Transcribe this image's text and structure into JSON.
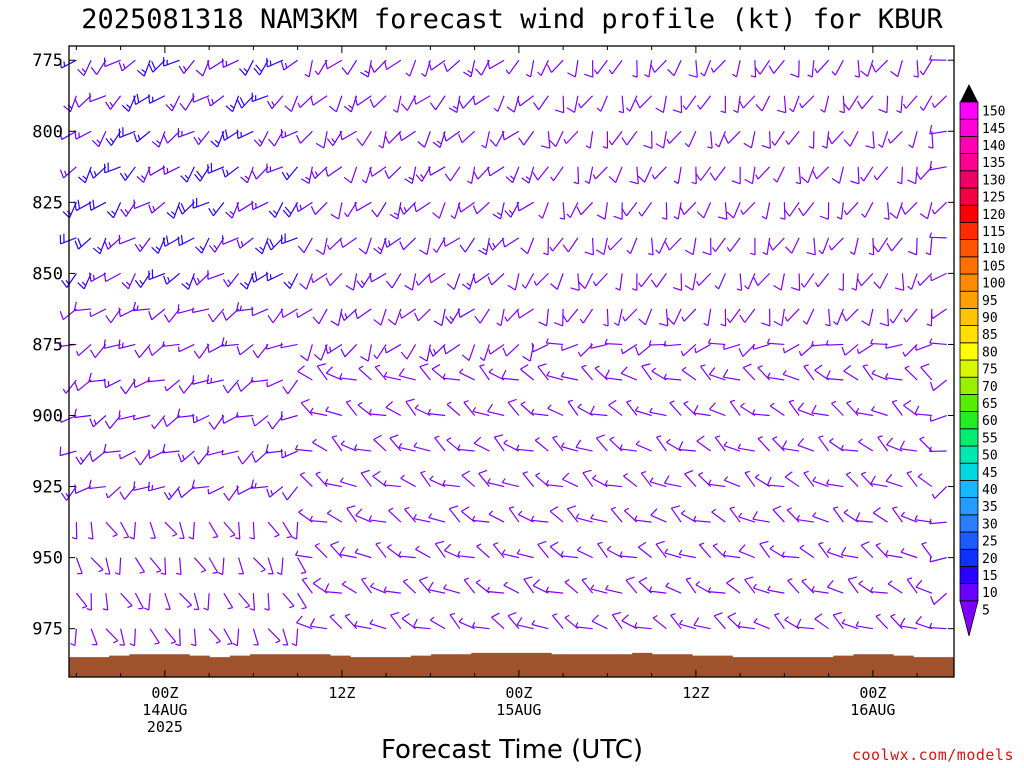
{
  "chart_data": {
    "type": "wind-barb-profile",
    "title": "2025081318 NAM3KM forecast wind profile (kt) for KBUR",
    "xlabel": "Forecast Time (UTC)",
    "ylabel": "",
    "y_ticks": [
      775,
      800,
      825,
      850,
      875,
      900,
      925,
      950,
      975
    ],
    "ylim": [
      770,
      992
    ],
    "xlim_hours": [
      -6.5,
      53.5
    ],
    "x_ticks": [
      {
        "hour": 0,
        "label": "00Z",
        "line2": "14AUG",
        "line3": "2025"
      },
      {
        "hour": 12,
        "label": "12Z",
        "line2": "",
        "line3": ""
      },
      {
        "hour": 24,
        "label": "00Z",
        "line2": "15AUG",
        "line3": ""
      },
      {
        "hour": 36,
        "label": "12Z",
        "line2": "",
        "line3": ""
      },
      {
        "hour": 48,
        "label": "00Z",
        "line2": "16AUG",
        "line3": ""
      }
    ],
    "colorbar": {
      "levels": [
        5,
        10,
        15,
        20,
        25,
        30,
        35,
        40,
        45,
        50,
        55,
        60,
        65,
        70,
        75,
        80,
        85,
        90,
        95,
        100,
        105,
        110,
        115,
        120,
        125,
        130,
        135,
        140,
        145,
        150
      ],
      "colors": [
        "#8000ff",
        "#6a00ff",
        "#2a00ff",
        "#1030ff",
        "#1c5cff",
        "#2c7cff",
        "#239bff",
        "#16b8ff",
        "#00d8e0",
        "#00e8b0",
        "#00ee70",
        "#22ee22",
        "#55ee00",
        "#99f000",
        "#d8f800",
        "#ffff00",
        "#ffe000",
        "#ffc400",
        "#ffa000",
        "#ff8c00",
        "#ff7000",
        "#ff5500",
        "#ff2c00",
        "#ff0000",
        "#f20040",
        "#ee0066",
        "#ff0090",
        "#ff00b0",
        "#ff00d8",
        "#ff00ff"
      ],
      "top_arrow_color": "#000000"
    },
    "terrain_color": "#a0522d",
    "terrain_top_mb": [
      985,
      985,
      984.5,
      984,
      984,
      984,
      984.5,
      985,
      984.5,
      984,
      984,
      984,
      984,
      984.5,
      985,
      985,
      985,
      984.5,
      984,
      984,
      983.5,
      983.5,
      983.5,
      983.5,
      984,
      984,
      984,
      984,
      983.5,
      984,
      984,
      984.5,
      984.5,
      985,
      985,
      985,
      985,
      985,
      984.5,
      984,
      984,
      984.5,
      985,
      985
    ],
    "barbs": {
      "note": "one wind barb per forecast hour per pressure level; values in knots / degrees",
      "hours_start": -6,
      "hours_step": 1,
      "levels_mb": [
        775,
        787.5,
        800,
        812.5,
        825,
        837.5,
        850,
        862.5,
        875,
        887.5,
        900,
        912.5,
        925,
        937.5,
        950,
        962.5,
        975,
        987.5
      ],
      "regimes": [
        {
          "hours": [
            -6,
            10
          ],
          "levels": [
            775,
            850
          ],
          "speed_kt": 15,
          "dir_deg": 225
        },
        {
          "hours": [
            -6,
            10
          ],
          "levels": [
            862.5,
            925
          ],
          "speed_kt": 10,
          "dir_deg": 240
        },
        {
          "hours": [
            10,
            26
          ],
          "levels": [
            775,
            875
          ],
          "speed_kt": 10,
          "dir_deg": 215
        },
        {
          "hours": [
            26,
            53
          ],
          "levels": [
            775,
            862.5
          ],
          "speed_kt": 7,
          "dir_deg": 200
        },
        {
          "hours": [
            10,
            53
          ],
          "levels": [
            887.5,
            987.5
          ],
          "speed_kt": 6,
          "dir_deg": 300
        },
        {
          "hours": [
            -6,
            10
          ],
          "levels": [
            937.5,
            987.5
          ],
          "speed_kt": 4,
          "dir_deg": 160
        }
      ]
    }
  },
  "footer": {
    "text": "coolwx.com/models"
  }
}
